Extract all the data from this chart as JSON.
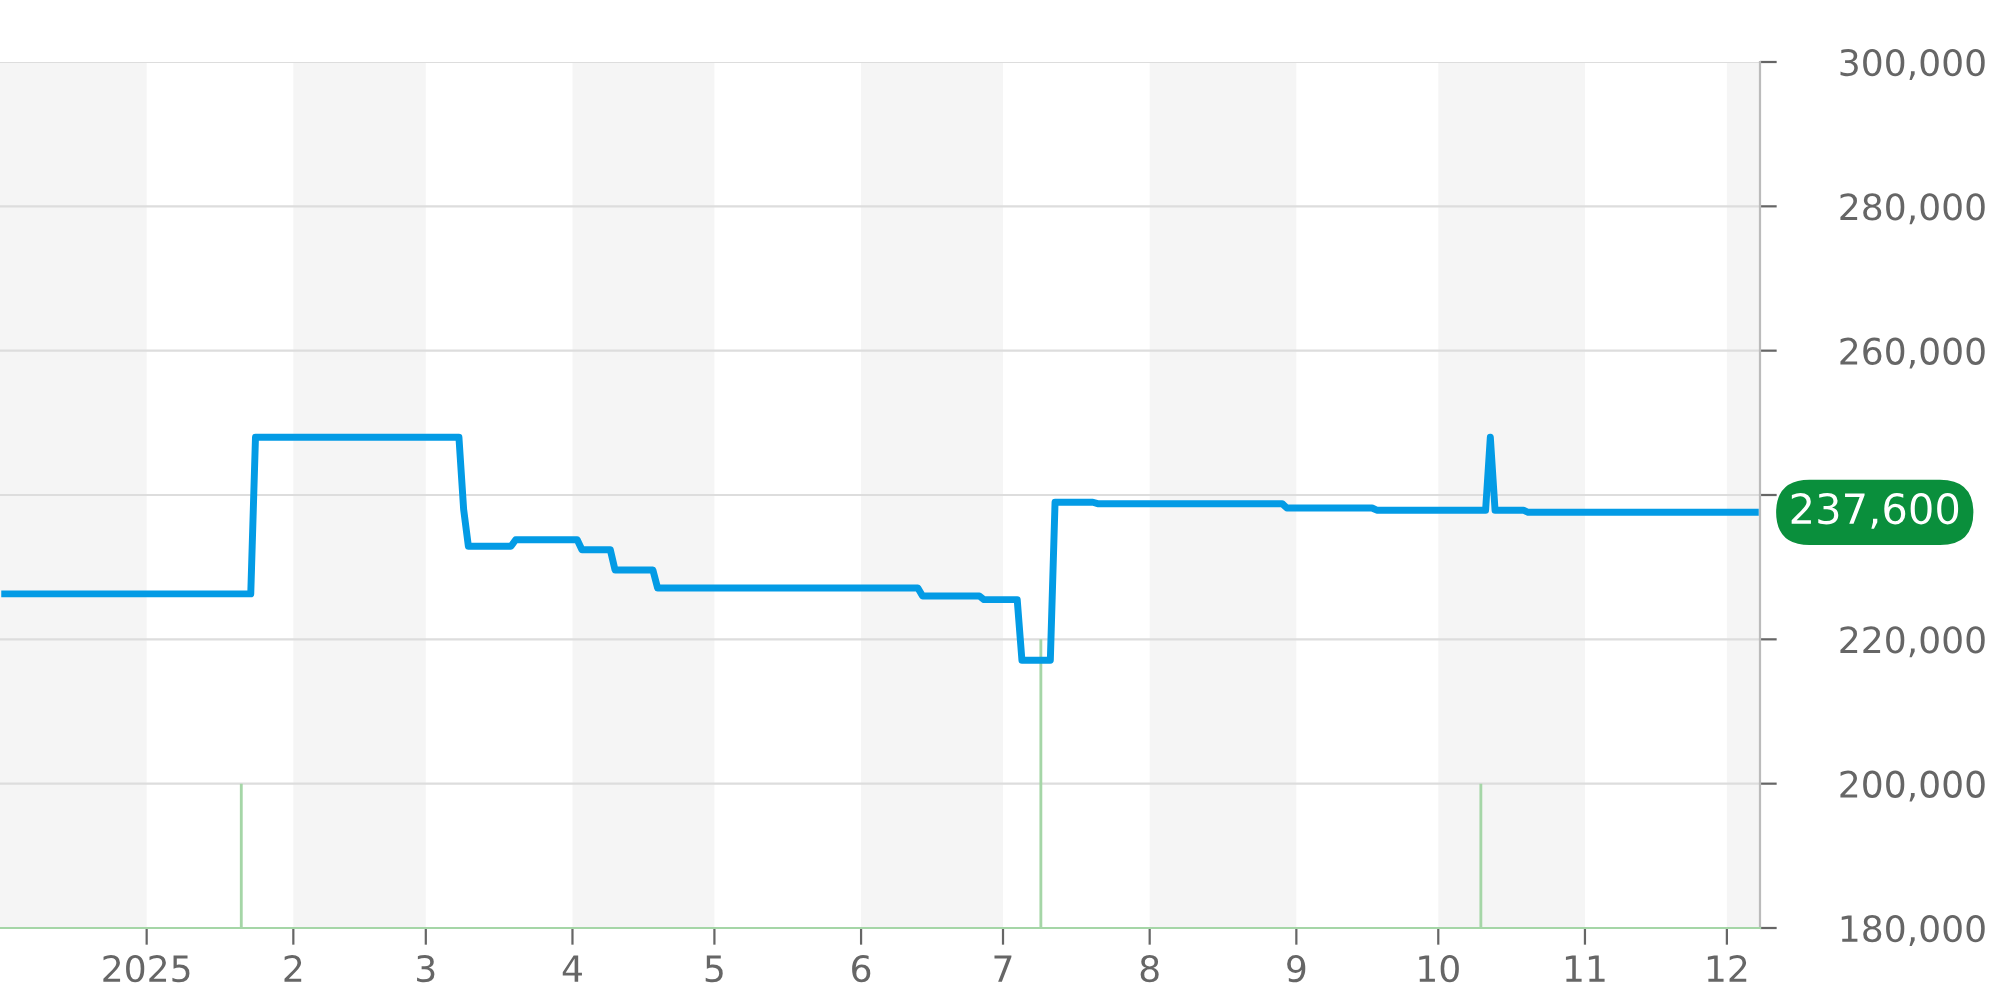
{
  "chart_data": {
    "type": "line",
    "xlim": [
      "2024-12-01",
      "2025-12-08"
    ],
    "xticks": [
      {
        "value": "2025-01-01",
        "label": "2025"
      },
      {
        "value": "2025-02-01",
        "label": "2"
      },
      {
        "value": "2025-03-01",
        "label": "3"
      },
      {
        "value": "2025-04-01",
        "label": "4"
      },
      {
        "value": "2025-05-01",
        "label": "5"
      },
      {
        "value": "2025-06-01",
        "label": "6"
      },
      {
        "value": "2025-07-01",
        "label": "7"
      },
      {
        "value": "2025-08-01",
        "label": "8"
      },
      {
        "value": "2025-09-01",
        "label": "9"
      },
      {
        "value": "2025-10-01",
        "label": "10"
      },
      {
        "value": "2025-11-01",
        "label": "11"
      },
      {
        "value": "2025-12-01",
        "label": "12"
      }
    ],
    "ylim": [
      180000,
      300000
    ],
    "yticks": [
      {
        "value": 180000,
        "label": "180,000"
      },
      {
        "value": 200000,
        "label": "200,000"
      },
      {
        "value": 220000,
        "label": "220,000"
      },
      {
        "value": 240000,
        "label": null
      },
      {
        "value": 260000,
        "label": "260,000"
      },
      {
        "value": 280000,
        "label": "280,000"
      },
      {
        "value": 300000,
        "label": "300,000"
      }
    ],
    "grid": "y",
    "series": [
      {
        "color": "#039be5",
        "x": [
          "2024-12-02",
          "2025-01-23",
          "2025-01-24",
          "2025-03-08",
          "2025-03-09",
          "2025-03-10",
          "2025-03-19",
          "2025-03-20",
          "2025-04-02",
          "2025-04-03",
          "2025-04-09",
          "2025-04-10",
          "2025-04-18",
          "2025-04-19",
          "2025-06-13",
          "2025-06-14",
          "2025-06-26",
          "2025-06-27",
          "2025-07-04",
          "2025-07-05",
          "2025-07-11",
          "2025-07-12",
          "2025-07-20",
          "2025-07-21",
          "2025-08-29",
          "2025-08-30",
          "2025-09-17",
          "2025-09-18",
          "2025-10-11",
          "2025-10-12",
          "2025-10-13",
          "2025-10-19",
          "2025-10-20",
          "2025-12-07"
        ],
        "values": [
          226300,
          226300,
          248000,
          248000,
          238000,
          232900,
          232900,
          233800,
          233800,
          232400,
          232400,
          229600,
          229600,
          227100,
          227100,
          226000,
          226000,
          225500,
          225500,
          217100,
          217100,
          239000,
          239000,
          238800,
          238800,
          238200,
          238200,
          237900,
          237900,
          248000,
          237900,
          237900,
          237600,
          237600
        ]
      },
      {
        "type": "bar",
        "color": "#a5d6a7",
        "x": [
          "2025-01-21",
          "2025-07-09",
          "2025-10-10"
        ],
        "values": [
          200000,
          220000,
          200000
        ]
      }
    ],
    "bands": [
      {
        "axis": "x",
        "from": "2024-12-01",
        "to": "2025-01-01",
        "color": "#f5f5f5"
      },
      {
        "axis": "x",
        "from": "2025-02-01",
        "to": "2025-03-01",
        "color": "#f5f5f5"
      },
      {
        "axis": "x",
        "from": "2025-04-01",
        "to": "2025-05-01",
        "color": "#f5f5f5"
      },
      {
        "axis": "x",
        "from": "2025-06-01",
        "to": "2025-07-01",
        "color": "#f5f5f5"
      },
      {
        "axis": "x",
        "from": "2025-08-01",
        "to": "2025-09-01",
        "color": "#f5f5f5"
      },
      {
        "axis": "x",
        "from": "2025-10-01",
        "to": "2025-11-01",
        "color": "#f5f5f5"
      },
      {
        "axis": "x",
        "from": "2025-12-01",
        "to": "2025-12-08",
        "color": "#f5f5f5"
      }
    ],
    "annotations": [
      {
        "text": "237,600",
        "x": "2025-12-07",
        "y": 237600
      }
    ]
  }
}
